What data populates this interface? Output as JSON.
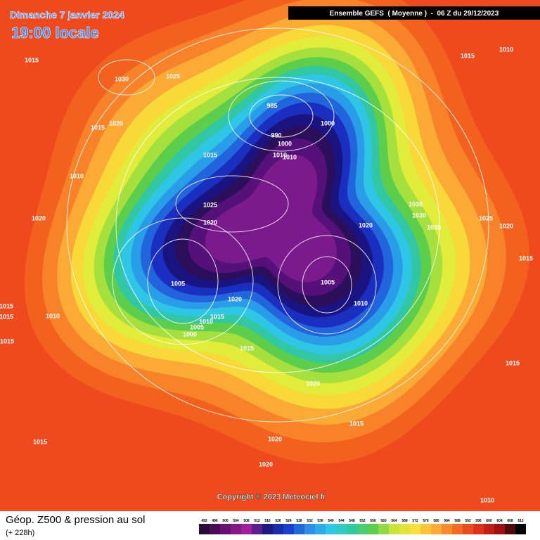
{
  "header": {
    "date": "Dimanche 7 janvier 2024",
    "time": "19:00 locale",
    "run": "Ensemble GEFS  ( Moyenne )  -  06 Z du 29/12/2023"
  },
  "footer": {
    "title": "Géop. Z500 & pression au sol",
    "lead": "(+ 228h)",
    "copyright": "Copyright © 2023 Meteociel.fr"
  },
  "scale": {
    "ticks": [
      492,
      496,
      500,
      504,
      508,
      512,
      516,
      520,
      524,
      528,
      532,
      536,
      540,
      544,
      548,
      552,
      556,
      560,
      564,
      568,
      572,
      576,
      580,
      584,
      588,
      592,
      596,
      600,
      604,
      608,
      612
    ]
  },
  "isobar_labels": [
    1015,
    1030,
    1025,
    1015,
    1020,
    1010,
    1020,
    1015,
    1015,
    1010,
    1015,
    1015,
    985,
    1000,
    990,
    1000,
    1010,
    1010,
    1015,
    1025,
    1020,
    1020,
    1030,
    1030,
    1035,
    1025,
    1020,
    1015,
    1010,
    1015,
    1005,
    1005,
    1010,
    1020,
    1015,
    1010,
    1005,
    1000,
    1015,
    1020,
    1015,
    1020,
    1020,
    1010,
    1015
  ]
}
